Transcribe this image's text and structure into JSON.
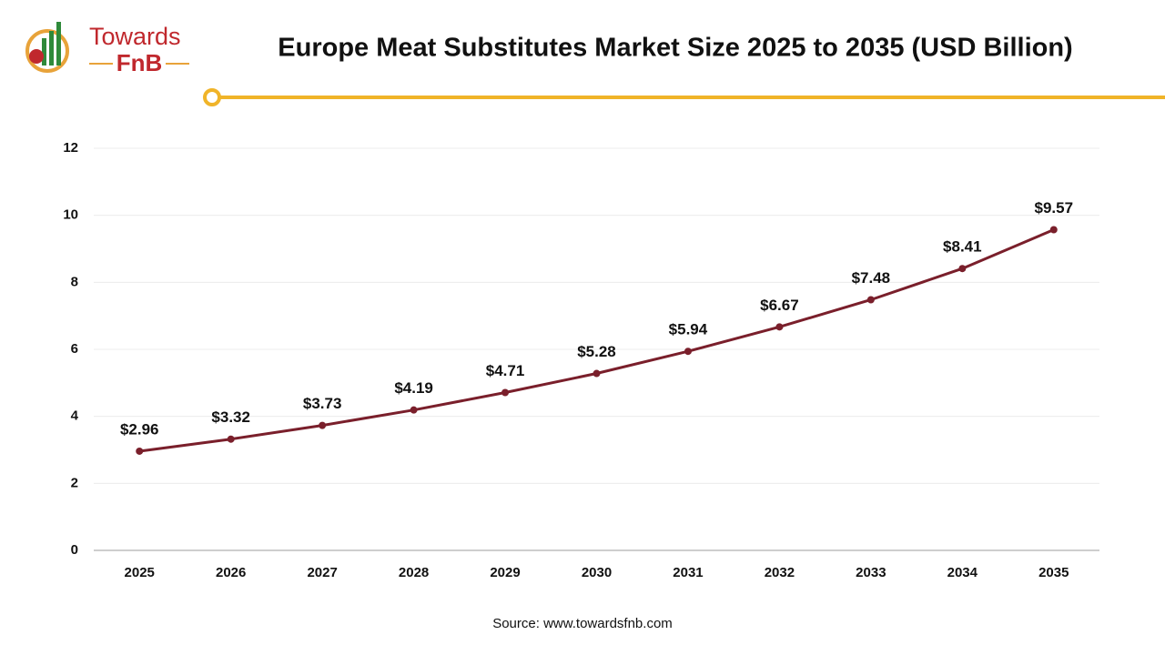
{
  "logo": {
    "line1": "Towards",
    "line2": "FnB"
  },
  "chart_data": {
    "type": "line",
    "title": "Europe Meat Substitutes Market Size 2025 to 2035 (USD Billion)",
    "categories": [
      "2025",
      "2026",
      "2027",
      "2028",
      "2029",
      "2030",
      "2031",
      "2032",
      "2033",
      "2034",
      "2035"
    ],
    "values": [
      2.96,
      3.32,
      3.73,
      4.19,
      4.71,
      5.28,
      5.94,
      6.67,
      7.48,
      8.41,
      9.57
    ],
    "value_labels": [
      "$2.96",
      "$3.32",
      "$3.73",
      "$4.19",
      "$4.71",
      "$5.28",
      "$5.94",
      "$6.67",
      "$7.48",
      "$8.41",
      "$9.57"
    ],
    "color": "#7a1f2b",
    "ylim": [
      0,
      12
    ],
    "yticks": [
      0,
      2,
      4,
      6,
      8,
      10,
      12
    ],
    "grid": true,
    "source": "Source: www.towardsfnb.com"
  }
}
